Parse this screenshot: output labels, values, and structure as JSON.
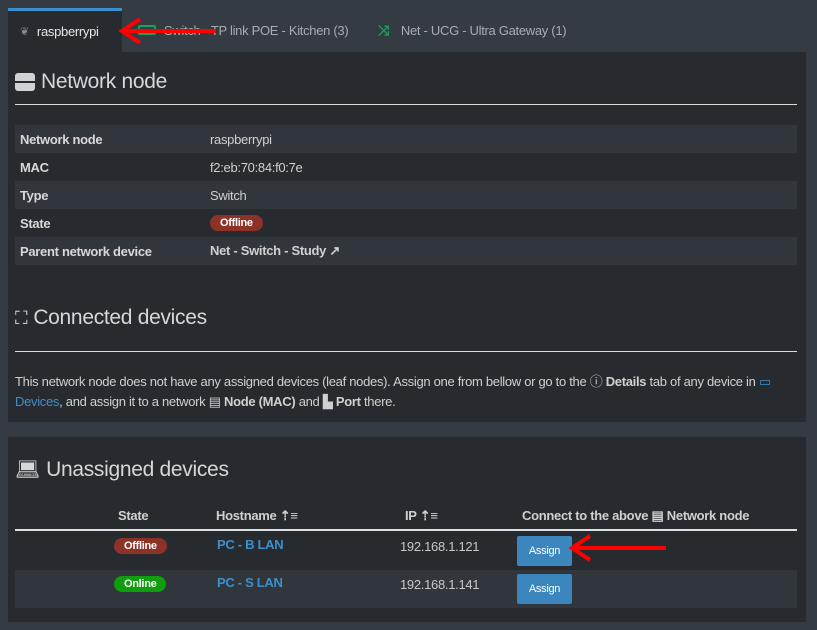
{
  "tabs": [
    {
      "label": "raspberrypi",
      "icon": "raspberry-icon",
      "active": true
    },
    {
      "label": "Switch - TP link POE - Kitchen (3)",
      "icon": "switch-icon"
    },
    {
      "label": "Net - UCG - Ultra Gateway (1)",
      "icon": "shuffle-icon"
    }
  ],
  "node": {
    "title": "Network node",
    "rows": [
      {
        "label": "Network node",
        "value": "raspberrypi"
      },
      {
        "label": "MAC",
        "value": "f2:eb:70:84:f0:7e"
      },
      {
        "label": "Type",
        "value": "Switch"
      },
      {
        "label": "State",
        "value": "Offline"
      },
      {
        "label": "Parent network device",
        "value": "Net - Switch - Study"
      }
    ]
  },
  "connected": {
    "title": "Connected devices",
    "msg_1": "This network node does not have any assigned devices (leaf nodes). Assign one from bellow or go to the ",
    "details": "Details",
    "msg_2": " tab of any device in ",
    "devices": "Devices",
    "msg_3": ", and assign it to a network ",
    "node_mac": "Node (MAC)",
    "msg_4": " and ",
    "port": "Port",
    "msg_5": " there."
  },
  "unassigned": {
    "title": "Unassigned devices",
    "columns": {
      "state": "State",
      "hostname": "Hostname",
      "ip": "IP",
      "connect": "Connect to the above",
      "connect_2": "Network node"
    },
    "rows": [
      {
        "state": "Offline",
        "hostname": "PC - B LAN",
        "ip": "192.168.1.121",
        "action": "Assign"
      },
      {
        "state": "Online",
        "hostname": "PC - S LAN",
        "ip": "192.168.1.141",
        "action": "Assign"
      }
    ]
  },
  "colors": {
    "accent": "#3a8fd0",
    "offline": "#8d3226",
    "online": "#0e9e0e",
    "annotation": "#ff0000"
  }
}
